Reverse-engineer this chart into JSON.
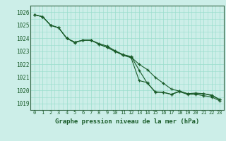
{
  "title": "Graphe pression niveau de la mer (hPa)",
  "background_color": "#cceee8",
  "grid_color": "#99ddcc",
  "line_color": "#1a5c2a",
  "xlim": [
    -0.5,
    23.5
  ],
  "ylim": [
    1018.5,
    1026.5
  ],
  "yticks": [
    1019,
    1020,
    1021,
    1022,
    1023,
    1024,
    1025,
    1026
  ],
  "xticks": [
    0,
    1,
    2,
    3,
    4,
    5,
    6,
    7,
    8,
    9,
    10,
    11,
    12,
    13,
    14,
    15,
    16,
    17,
    18,
    19,
    20,
    21,
    22,
    23
  ],
  "series": [
    [
      1025.8,
      1025.65,
      1025.0,
      1024.8,
      1024.0,
      1023.65,
      1023.85,
      1023.85,
      1023.6,
      1023.4,
      1023.05,
      1022.75,
      1022.6,
      1021.55,
      1020.55,
      1019.9,
      1019.85,
      1019.7,
      1019.95,
      1019.75,
      1019.75,
      1019.75,
      1019.6,
      1019.3
    ],
    [
      1025.8,
      1025.65,
      1025.0,
      1024.8,
      1024.0,
      1023.7,
      1023.85,
      1023.85,
      1023.55,
      1023.3,
      1023.0,
      1022.7,
      1022.55,
      1022.0,
      1021.6,
      1021.0,
      1020.55,
      1020.1,
      1019.95,
      1019.75,
      1019.8,
      1019.75,
      1019.65,
      1019.3
    ],
    [
      1025.8,
      1025.65,
      1025.0,
      1024.8,
      1024.0,
      1023.7,
      1023.85,
      1023.85,
      1023.55,
      1023.3,
      1023.0,
      1022.7,
      1022.5,
      1020.75,
      1020.6,
      1019.85,
      1019.85,
      1019.7,
      1019.9,
      1019.7,
      1019.7,
      1019.6,
      1019.5,
      1019.2
    ]
  ],
  "figsize": [
    3.2,
    2.0
  ],
  "dpi": 100
}
